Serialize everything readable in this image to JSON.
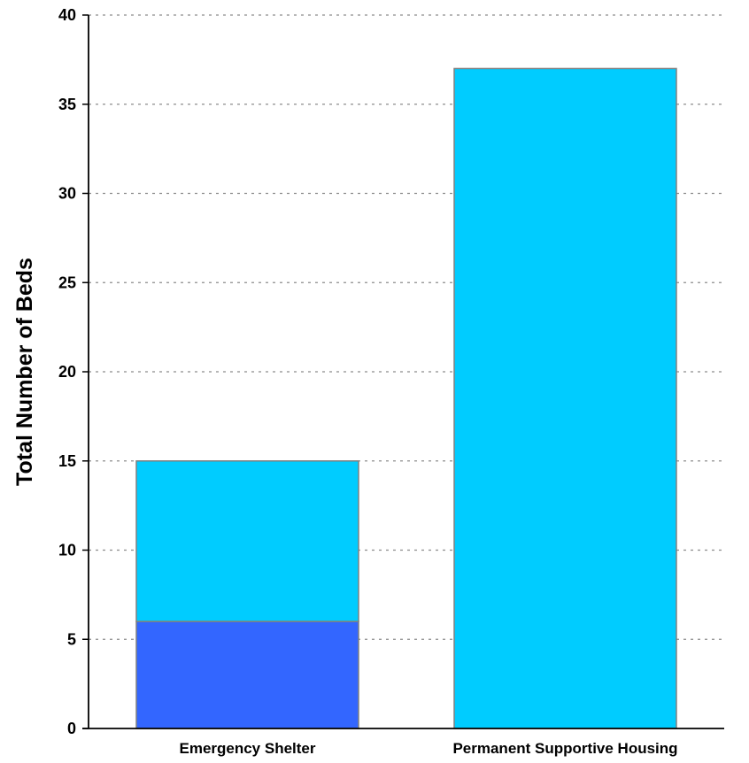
{
  "chart_data": {
    "type": "bar",
    "stacked": true,
    "title": "",
    "xlabel": "",
    "ylabel": "Total Number of Beds",
    "categories": [
      "Emergency Shelter",
      "Permanent Supportive Housing"
    ],
    "series": [
      {
        "values": [
          6,
          0
        ],
        "color": "#3366ff"
      },
      {
        "values": [
          9,
          37
        ],
        "color": "#00ccff"
      }
    ],
    "ylim": [
      0,
      40
    ],
    "yticks": [
      0,
      5,
      10,
      15,
      20,
      25,
      30,
      35,
      40
    ],
    "grid": true,
    "legend": "none"
  }
}
